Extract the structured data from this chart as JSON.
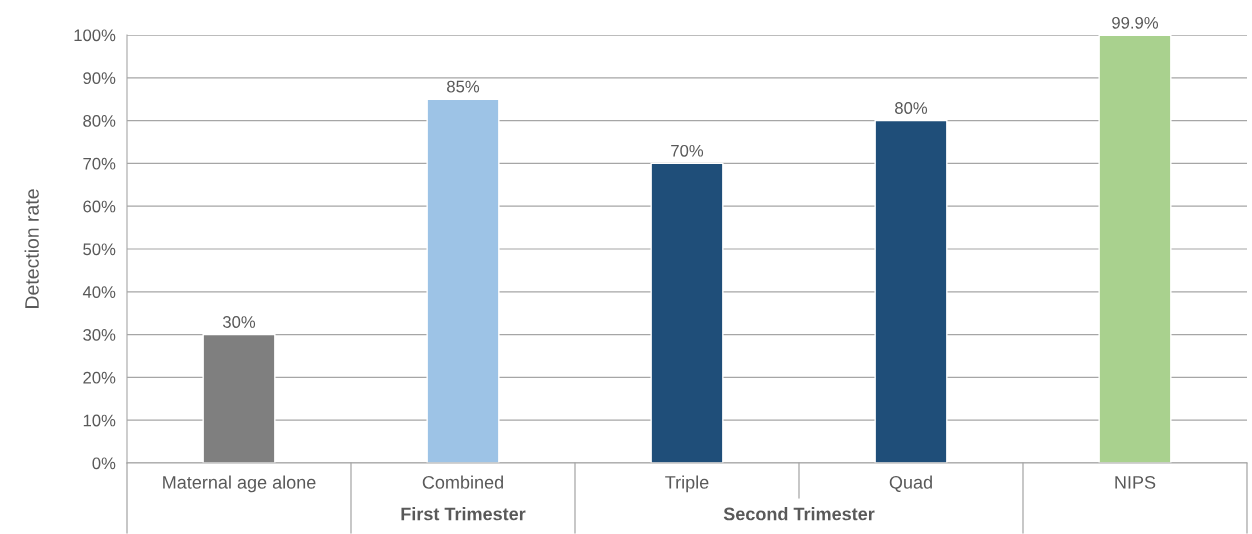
{
  "chart_data": {
    "type": "bar",
    "categories": [
      "Maternal age alone",
      "Combined",
      "Triple",
      "Quad",
      "NIPS"
    ],
    "values": [
      30,
      85,
      70,
      80,
      99.9
    ],
    "colors": [
      "#7f7f7f",
      "#9dc3e6",
      "#1f4e79",
      "#1f4e79",
      "#a9d18e"
    ],
    "value_labels": [
      "30%",
      "85%",
      "70%",
      "80%",
      "99.9%"
    ],
    "ylabel": "Detection rate",
    "annotations": [
      "First Trimester",
      "Second Trimester"
    ],
    "ylim": [
      0,
      100
    ],
    "yticks": [
      {
        "value": 0,
        "label": "0%"
      },
      {
        "value": 10,
        "label": "10%"
      },
      {
        "value": 20,
        "label": "20%"
      },
      {
        "value": 30,
        "label": "30%"
      },
      {
        "value": 40,
        "label": "40%"
      },
      {
        "value": 50,
        "label": "50%"
      },
      {
        "value": 60,
        "label": "60%"
      },
      {
        "value": 70,
        "label": "70%"
      },
      {
        "value": 80,
        "label": "80%"
      },
      {
        "value": 90,
        "label": "90%"
      },
      {
        "value": 100,
        "label": "100%"
      }
    ],
    "grid": "y",
    "legend": false
  }
}
